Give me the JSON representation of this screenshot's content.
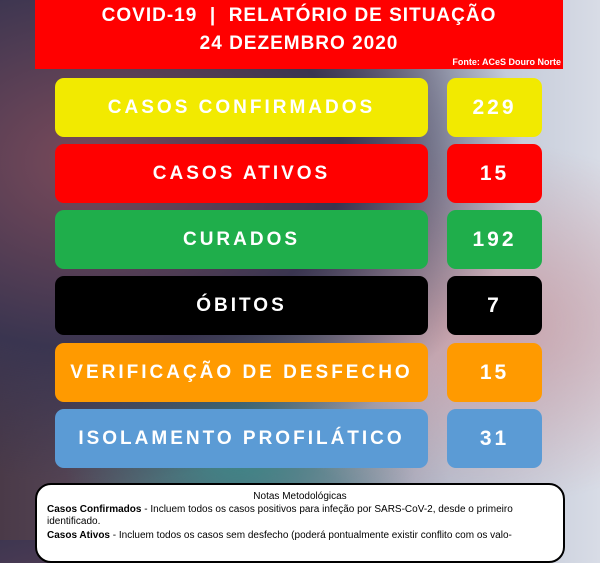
{
  "header": {
    "title": "COVID-19  |  RELATÓRIO DE SITUAÇÃO",
    "date": "24 DEZEMBRO 2020",
    "source": "Fonte: ACeS Douro Norte"
  },
  "rows": [
    {
      "label": "CASOS CONFIRMADOS",
      "value": "229",
      "color": "#f2ea00"
    },
    {
      "label": "CASOS ATIVOS",
      "value": "15",
      "color": "#ff0000"
    },
    {
      "label": "CURADOS",
      "value": "192",
      "color": "#1fae4b"
    },
    {
      "label": "ÓBITOS",
      "value": "7",
      "color": "#000000"
    },
    {
      "label": "VERIFICAÇÃO DE DESFECHO",
      "value": "15",
      "color": "#ff9a00"
    },
    {
      "label": "ISOLAMENTO PROFILÁTICO",
      "value": "31",
      "color": "#5b9bd5"
    }
  ],
  "notes": {
    "title": "Notas Metodológicas",
    "items": [
      {
        "term": "Casos Confirmados",
        "text": " - Incluem todos os casos positivos para infeção por SARS-CoV-2, desde o primeiro identificado."
      },
      {
        "term": "Casos Ativos",
        "text": " - Incluem todos os casos sem desfecho (poderá pontualmente existir conflito com os valo-"
      }
    ]
  }
}
